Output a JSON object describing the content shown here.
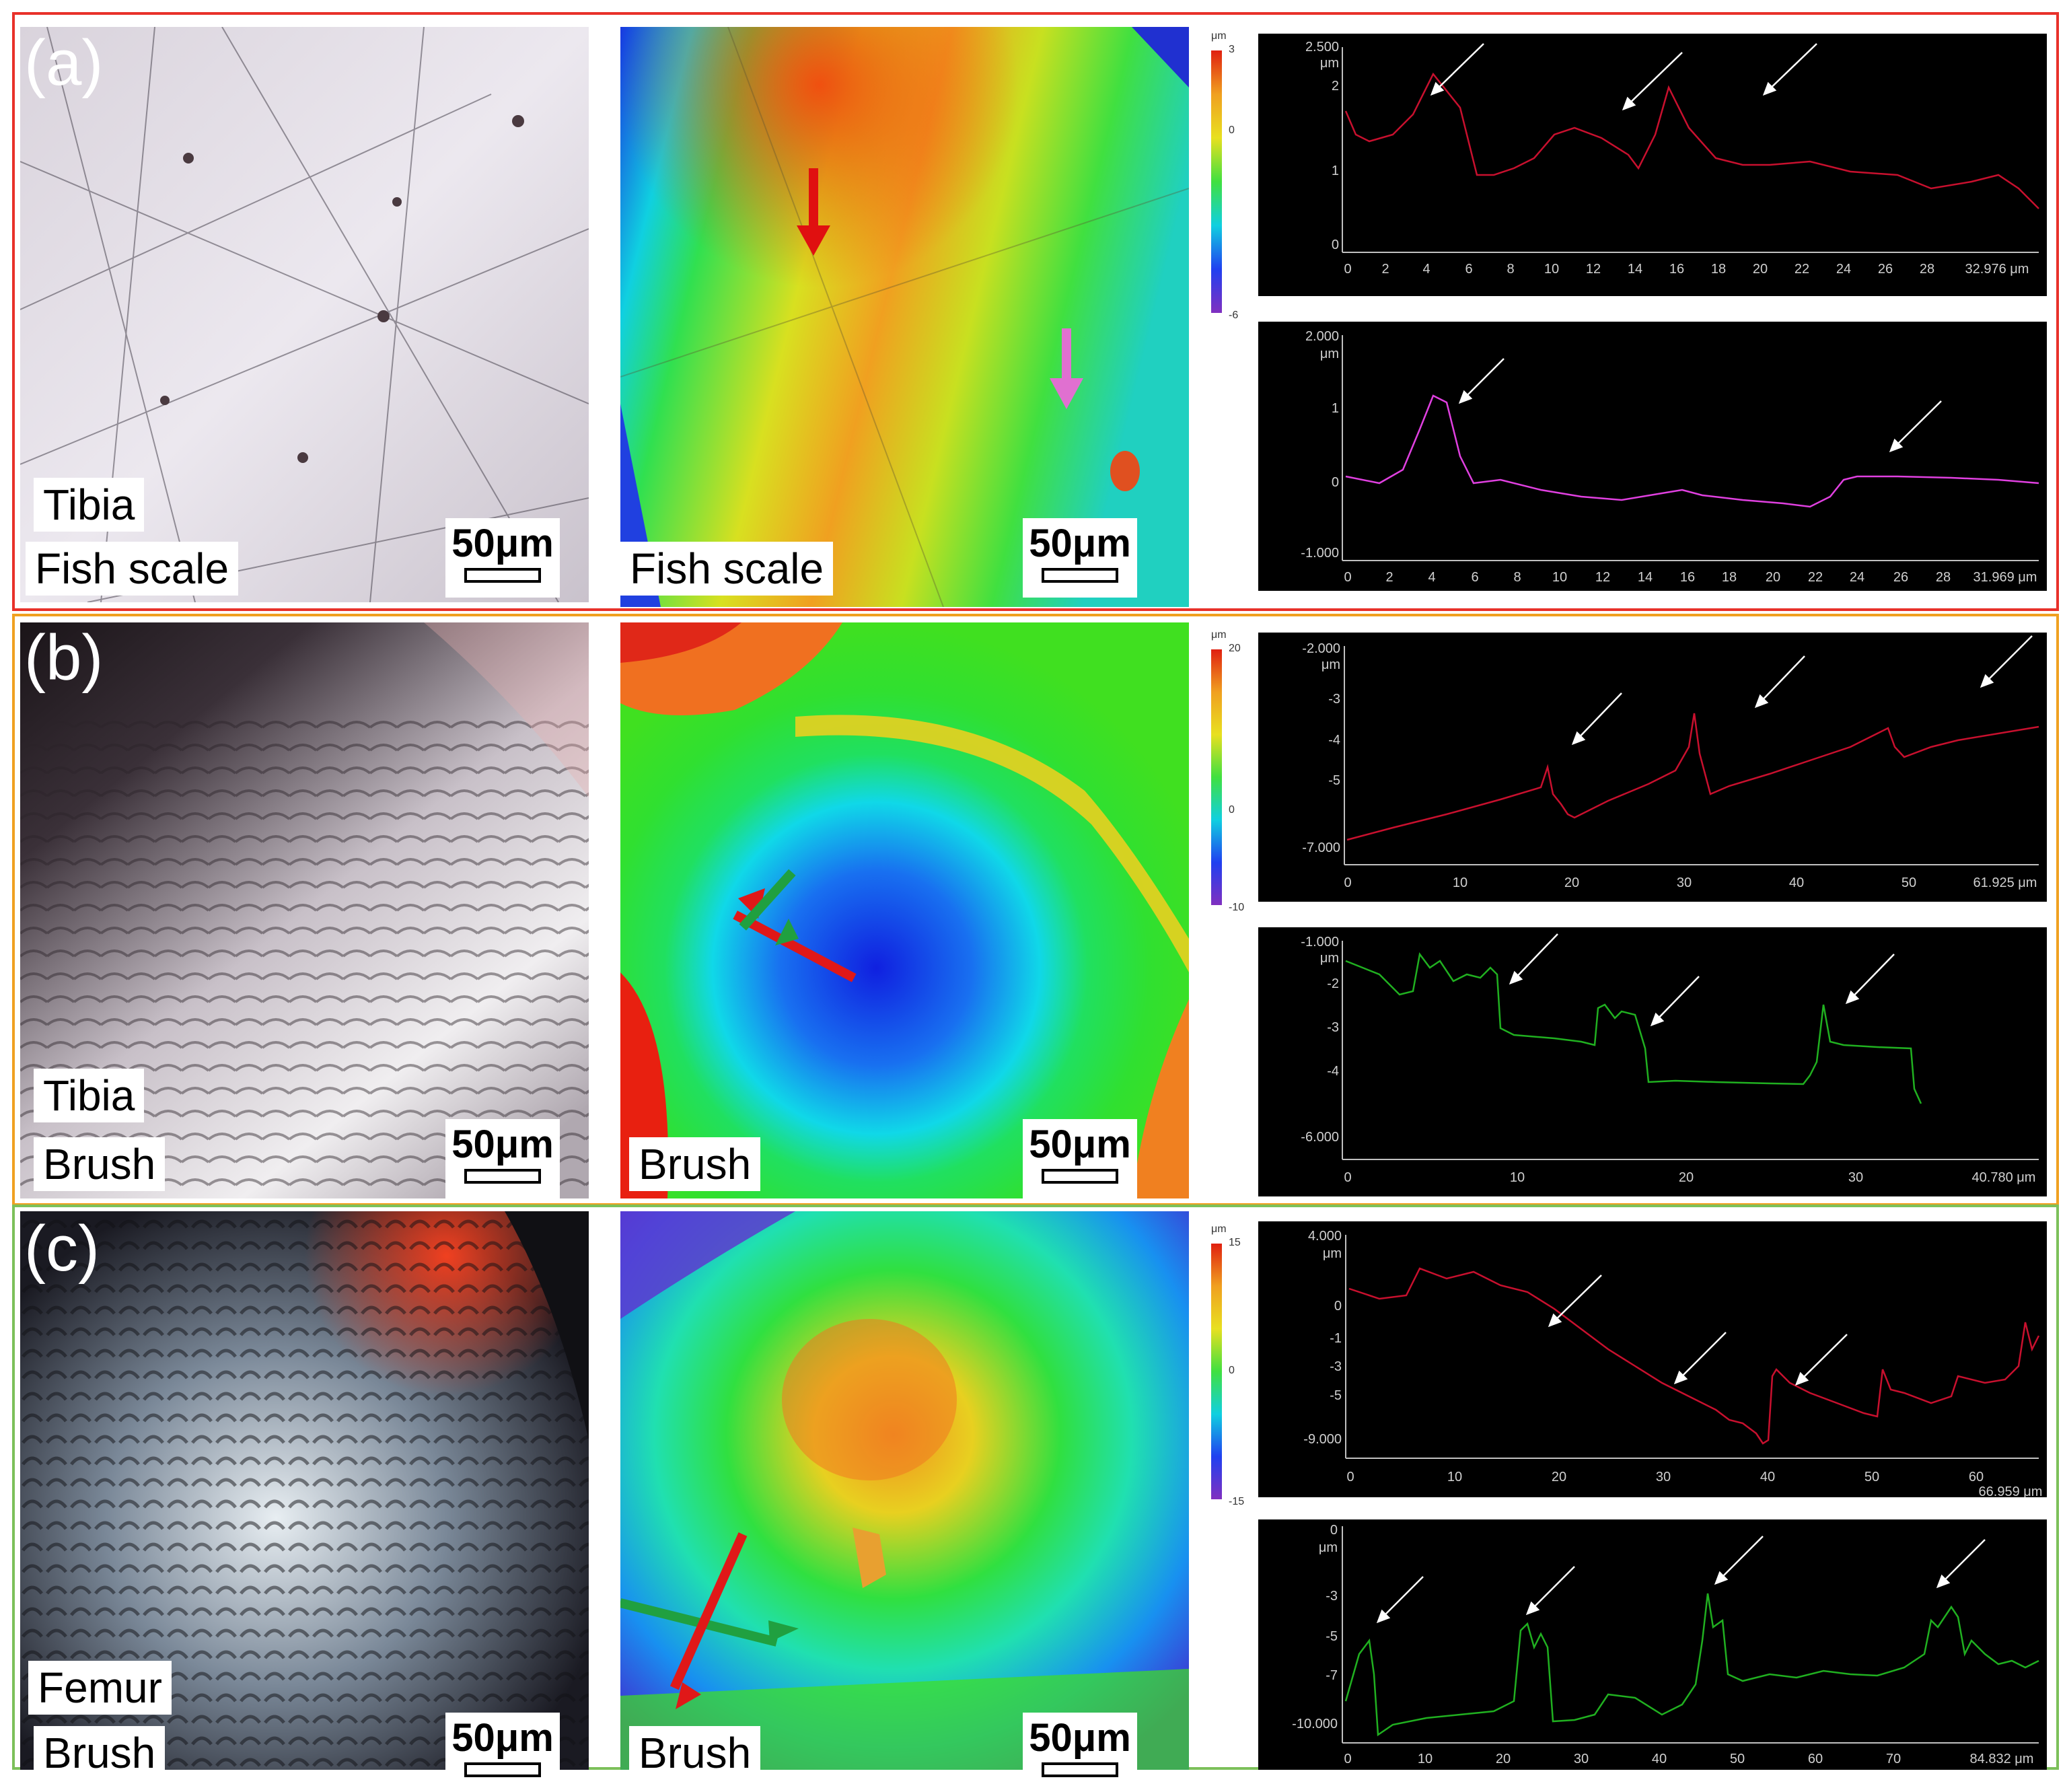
{
  "panels": [
    {
      "letter": "(a)",
      "frame_color": "#e8312a",
      "photo_labels": [
        "Tibia",
        "Fish scale"
      ],
      "map_label": "Fish scale",
      "scale_bar": "50μm",
      "colorbar": {
        "unit": "μm",
        "max": "3",
        "mid": "0",
        "min": "-6"
      },
      "profiles": [
        {
          "color": "#c8102e",
          "y_ticks": [
            "2.500",
            "2",
            "1",
            "0"
          ],
          "y_unit": "μm",
          "x_ticks": [
            "0",
            "2",
            "4",
            "6",
            "8",
            "10",
            "12",
            "14",
            "16",
            "18",
            "20",
            "22",
            "24",
            "26",
            "28",
            "32.976 μm"
          ]
        },
        {
          "color": "#e040e0",
          "y_ticks": [
            "2.000",
            "1",
            "0",
            "-1.000"
          ],
          "y_unit": "μm",
          "x_ticks": [
            "0",
            "2",
            "4",
            "6",
            "8",
            "10",
            "12",
            "14",
            "16",
            "18",
            "20",
            "22",
            "24",
            "26",
            "28",
            "31.969 μm"
          ]
        }
      ]
    },
    {
      "letter": "(b)",
      "frame_color": "#f0a020",
      "photo_labels": [
        "Tibia",
        "Brush"
      ],
      "map_label": "Brush",
      "scale_bar": "50μm",
      "colorbar": {
        "unit": "μm",
        "max": "20",
        "mid": "0",
        "min": "-10"
      },
      "profiles": [
        {
          "color": "#c8102e",
          "y_ticks": [
            "-2.000",
            "-3",
            "-4",
            "-5",
            "-7.000"
          ],
          "y_unit": "μm",
          "x_ticks": [
            "0",
            "10",
            "20",
            "30",
            "40",
            "50",
            "61.925 μm"
          ]
        },
        {
          "color": "#20b020",
          "y_ticks": [
            "-1.000",
            "-2",
            "-3",
            "-4",
            "-6.000"
          ],
          "y_unit": "μm",
          "x_ticks": [
            "0",
            "10",
            "20",
            "30",
            "40.780 μm"
          ]
        }
      ]
    },
    {
      "letter": "(c)",
      "frame_color": "#7cc05a",
      "photo_labels": [
        "Femur",
        "Brush"
      ],
      "map_label": "Brush",
      "scale_bar": "50μm",
      "colorbar": {
        "unit": "μm",
        "max": "15",
        "mid": "0",
        "min": "-15"
      },
      "profiles": [
        {
          "color": "#c8102e",
          "y_ticks": [
            "4.000",
            "0",
            "-1",
            "-3",
            "-5",
            "-9.000"
          ],
          "y_unit": "μm",
          "x_ticks": [
            "0",
            "10",
            "20",
            "30",
            "40",
            "50",
            "60",
            "66.959 μm"
          ]
        },
        {
          "color": "#20b020",
          "y_ticks": [
            "0",
            "-3",
            "-5",
            "-7",
            "-10.000"
          ],
          "y_unit": "μm",
          "x_ticks": [
            "0",
            "10",
            "20",
            "30",
            "40",
            "50",
            "60",
            "70",
            "84.832 μm"
          ]
        }
      ]
    }
  ]
}
